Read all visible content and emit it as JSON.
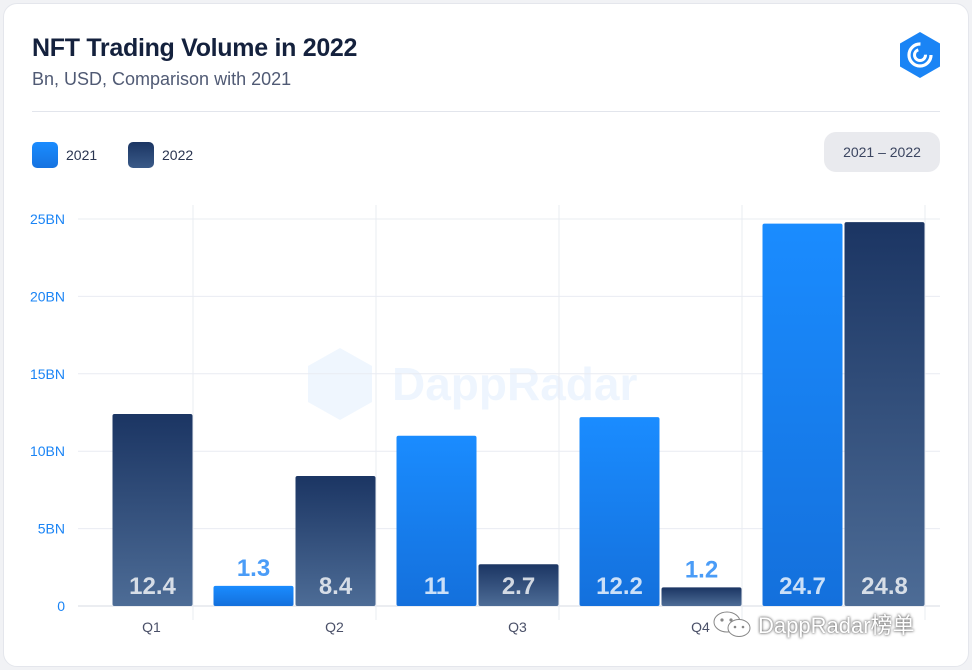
{
  "header": {
    "title": "NFT Trading Volume in 2022",
    "subtitle": "Bn, USD, Comparison with 2021"
  },
  "range": {
    "label": "2021 – 2022"
  },
  "watermark": {
    "text": "DappRadar",
    "corner": "DappRadar榜单"
  },
  "colors": {
    "series_2021": "#1a84f5",
    "series_2022": "#1f3d6c",
    "axis_label": "#1a84f5"
  },
  "chart_data": {
    "type": "bar",
    "categories": [
      "Q1",
      "Q2",
      "Q3",
      "Q4",
      ""
    ],
    "series": [
      {
        "name": "2021",
        "values": [
          null,
          1.3,
          11,
          12.2,
          24.7
        ],
        "labels": [
          "",
          "1.3",
          "11",
          "12.2",
          "24.7"
        ]
      },
      {
        "name": "2022",
        "values": [
          12.4,
          8.4,
          2.7,
          1.2,
          24.8
        ],
        "labels": [
          "12.4",
          "8.4",
          "2.7",
          "1.2",
          "24.8"
        ]
      }
    ],
    "yticks": [
      "0",
      "5BN",
      "10BN",
      "15BN",
      "20BN",
      "25BN"
    ],
    "ylim": [
      0,
      25
    ],
    "title": "NFT Trading Volume in 2022",
    "xlabel": "",
    "ylabel": "",
    "legend": "top-left",
    "grid": true
  }
}
